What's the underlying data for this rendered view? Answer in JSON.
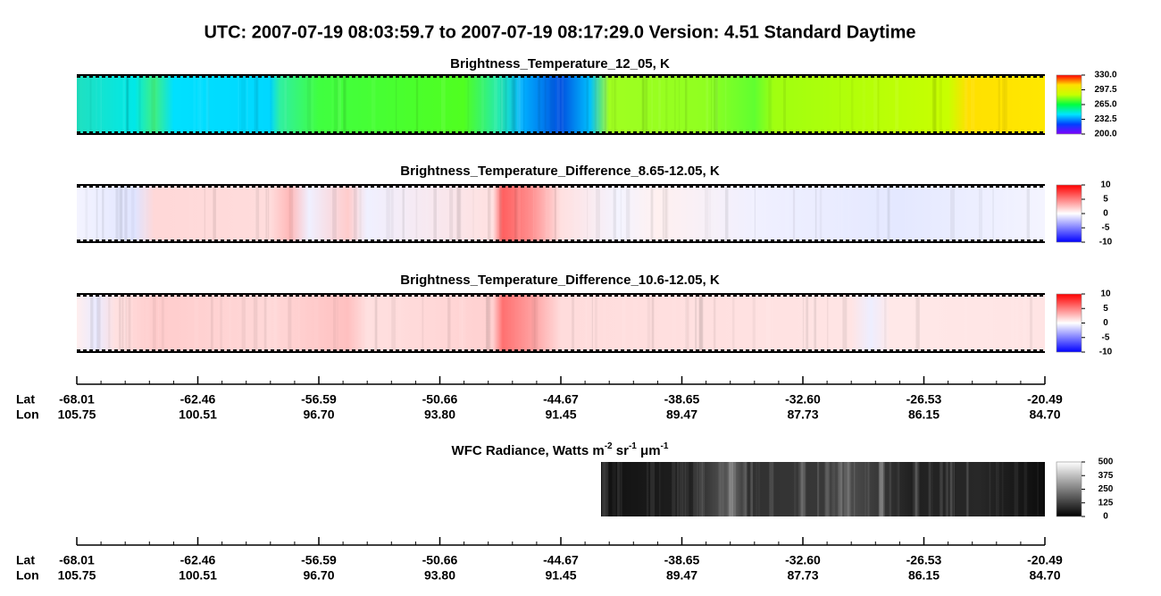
{
  "chart_data": [
    {
      "type": "heatmap",
      "figure_title": "UTC:  2007-07-19   08:03:59.7  to  2007-07-19   08:17:29.0    Version: 4.51  Standard Daytime",
      "title": "Brightness_Temperature_12_05, K",
      "clim": [
        200,
        330
      ],
      "cticks": [
        {
          "value": 330,
          "label": "330.0"
        },
        {
          "value": 297.5,
          "label": "297.5"
        },
        {
          "value": 265,
          "label": "265.0"
        },
        {
          "value": 232.5,
          "label": "232.5"
        },
        {
          "value": 200,
          "label": "200.0"
        }
      ],
      "colormap": [
        "#7f00ff",
        "#0040ff",
        "#00e5ff",
        "#00ff40",
        "#c8ff00",
        "#ffe000",
        "#ff0000"
      ]
    },
    {
      "type": "heatmap",
      "title": "Brightness_Temperature_Difference_8.65-12.05, K",
      "clim": [
        -10,
        10
      ],
      "cticks": [
        10,
        5,
        0,
        -5,
        -10
      ],
      "colormap": [
        "#0000ff",
        "#ffffff",
        "#ff0000"
      ]
    },
    {
      "type": "heatmap",
      "title": "Brightness_Temperature_Difference_10.6-12.05, K",
      "clim": [
        -10,
        10
      ],
      "cticks": [
        10,
        5,
        0,
        -5,
        -10
      ],
      "colormap": [
        "#0000ff",
        "#ffffff",
        "#ff0000"
      ],
      "x_axes": [
        {
          "label": "Lat",
          "ticks": [
            -68.01,
            -62.46,
            -56.59,
            -50.66,
            -44.67,
            -38.65,
            -32.6,
            -26.53,
            -20.49
          ],
          "tick_labels": [
            "-68.01",
            "-62.46",
            "-56.59",
            "-50.66",
            "-44.67",
            "-38.65",
            "-32.60",
            "-26.53",
            "-20.49"
          ]
        },
        {
          "label": "Lon",
          "ticks": [
            105.75,
            100.51,
            96.7,
            93.8,
            91.45,
            89.47,
            87.73,
            86.15,
            84.7
          ],
          "tick_labels": [
            "105.75",
            "100.51",
            "96.70",
            "93.80",
            "91.45",
            "89.47",
            "87.73",
            "86.15",
            "84.70"
          ]
        }
      ]
    },
    {
      "type": "heatmap",
      "title_parts": [
        "WFC Radiance, Watts m",
        "-2",
        " sr",
        "-1",
        " μm",
        "-1"
      ],
      "clim": [
        0,
        500
      ],
      "cticks": [
        500,
        375,
        250,
        125,
        0
      ],
      "colormap": [
        "#000000",
        "#ffffff"
      ],
      "x_axes": [
        {
          "label": "Lat",
          "ticks": [
            -68.01,
            -62.46,
            -56.59,
            -50.66,
            -44.67,
            -38.65,
            -32.6,
            -26.53,
            -20.49
          ],
          "tick_labels": [
            "-68.01",
            "-62.46",
            "-56.59",
            "-50.66",
            "-44.67",
            "-38.65",
            "-32.60",
            "-26.53",
            "-20.49"
          ]
        },
        {
          "label": "Lon",
          "ticks": [
            105.75,
            100.51,
            96.7,
            93.8,
            91.45,
            89.47,
            87.73,
            86.15,
            84.7
          ],
          "tick_labels": [
            "105.75",
            "100.51",
            "96.70",
            "93.80",
            "91.45",
            "89.47",
            "87.73",
            "86.15",
            "84.70"
          ]
        }
      ]
    }
  ]
}
